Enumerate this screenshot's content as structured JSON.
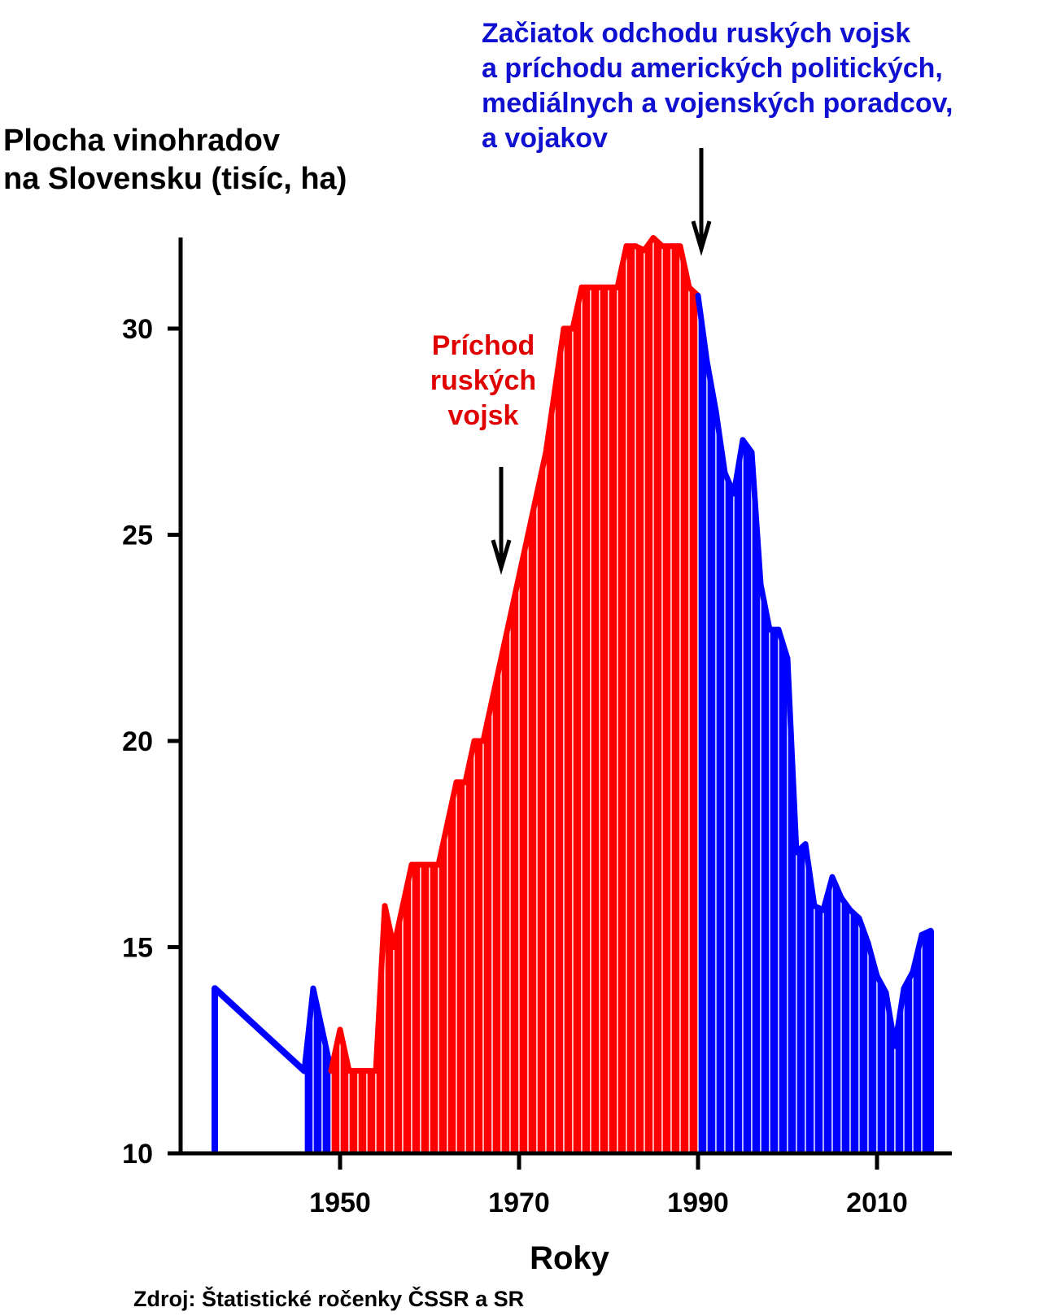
{
  "chart_data": {
    "type": "bar",
    "title": "",
    "ylabel_lines": [
      "Plocha vinohradov",
      "na Slovensku (tisíc, ha)"
    ],
    "xlabel": "Roky",
    "source": "Zdroj: Štatistické ročenky ČSSR a SR",
    "ylim": [
      10,
      32.5
    ],
    "xlim": [
      1932,
      2018
    ],
    "yticks": [
      10,
      15,
      20,
      25,
      30
    ],
    "xticks": [
      1950,
      1970,
      1990,
      2010
    ],
    "colors": {
      "soviet": "#ff0000",
      "other": "#0000ff",
      "axis": "#000000"
    },
    "years": [
      1936,
      1946,
      1947,
      1948,
      1949,
      1950,
      1951,
      1952,
      1953,
      1954,
      1955,
      1956,
      1957,
      1958,
      1959,
      1960,
      1961,
      1962,
      1963,
      1964,
      1965,
      1966,
      1967,
      1968,
      1969,
      1970,
      1971,
      1972,
      1973,
      1974,
      1975,
      1976,
      1977,
      1978,
      1979,
      1980,
      1981,
      1982,
      1983,
      1984,
      1985,
      1986,
      1987,
      1988,
      1989,
      1990,
      1991,
      1992,
      1993,
      1994,
      1995,
      1996,
      1997,
      1998,
      1999,
      2000,
      2001,
      2002,
      2003,
      2004,
      2005,
      2006,
      2007,
      2008,
      2009,
      2010,
      2011,
      2012,
      2013,
      2014,
      2015,
      2016
    ],
    "values": [
      14.0,
      12.0,
      14.0,
      13.0,
      12.0,
      13.0,
      12.0,
      12.0,
      12.0,
      12.0,
      16.0,
      15.0,
      16.0,
      17.0,
      17.0,
      17.0,
      17.0,
      18.0,
      19.0,
      19.0,
      20.0,
      20.0,
      21.0,
      22.0,
      23.0,
      24.0,
      25.0,
      26.0,
      27.0,
      28.5,
      30.0,
      30.0,
      31.0,
      31.0,
      31.0,
      31.0,
      31.0,
      32.0,
      32.0,
      31.9,
      32.2,
      32.0,
      32.0,
      32.0,
      31.0,
      30.8,
      29.2,
      28.0,
      26.5,
      26.0,
      27.3,
      27.0,
      23.8,
      22.7,
      22.7,
      22.0,
      17.3,
      17.5,
      16.0,
      15.9,
      16.7,
      16.2,
      15.9,
      15.7,
      15.1,
      14.3,
      13.9,
      12.6,
      14.0,
      14.4,
      15.3,
      15.4
    ],
    "soviet_period": [
      1949,
      1989
    ],
    "annotations": {
      "arrival": {
        "year": 1968,
        "lines": [
          "Príchod",
          "ruských",
          "vojsk"
        ]
      },
      "departure": {
        "year": 1990,
        "lines": [
          "Začiatok odchodu ruských vojsk",
          "a príchodu amerických politických,",
          "mediálnych a vojenských poradcov,",
          "a vojakov"
        ]
      }
    }
  }
}
